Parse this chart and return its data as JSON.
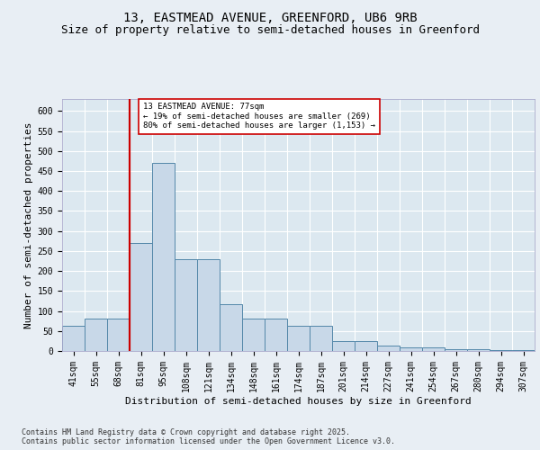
{
  "title_line1": "13, EASTMEAD AVENUE, GREENFORD, UB6 9RB",
  "title_line2": "Size of property relative to semi-detached houses in Greenford",
  "xlabel": "Distribution of semi-detached houses by size in Greenford",
  "ylabel": "Number of semi-detached properties",
  "footnote": "Contains HM Land Registry data © Crown copyright and database right 2025.\nContains public sector information licensed under the Open Government Licence v3.0.",
  "categories": [
    "41sqm",
    "55sqm",
    "68sqm",
    "81sqm",
    "95sqm",
    "108sqm",
    "121sqm",
    "134sqm",
    "148sqm",
    "161sqm",
    "174sqm",
    "187sqm",
    "201sqm",
    "214sqm",
    "227sqm",
    "241sqm",
    "254sqm",
    "267sqm",
    "280sqm",
    "294sqm",
    "307sqm"
  ],
  "values": [
    63,
    80,
    80,
    270,
    470,
    230,
    230,
    118,
    82,
    82,
    62,
    62,
    25,
    25,
    14,
    9,
    9,
    5,
    5,
    2,
    2
  ],
  "bar_color": "#c8d8e8",
  "bar_edge_color": "#5588aa",
  "vline_color": "#cc0000",
  "annotation_text": "13 EASTMEAD AVENUE: 77sqm\n← 19% of semi-detached houses are smaller (269)\n80% of semi-detached houses are larger (1,153) →",
  "annotation_box_color": "#ffffff",
  "annotation_box_edge": "#cc0000",
  "ylim": [
    0,
    630
  ],
  "yticks": [
    0,
    50,
    100,
    150,
    200,
    250,
    300,
    350,
    400,
    450,
    500,
    550,
    600
  ],
  "bg_color": "#e8eef4",
  "plot_bg_color": "#dce8f0",
  "grid_color": "#ffffff",
  "title_fontsize": 10,
  "subtitle_fontsize": 9,
  "axis_label_fontsize": 8,
  "tick_fontsize": 7,
  "footnote_fontsize": 6
}
